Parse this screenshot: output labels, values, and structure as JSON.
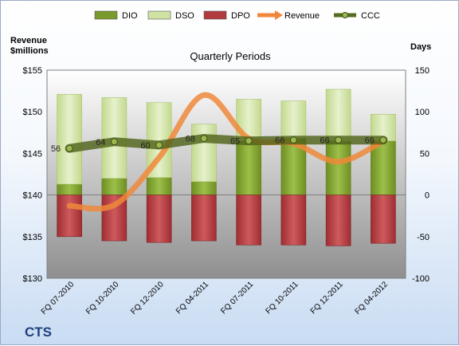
{
  "company": "CTS",
  "chart_data": {
    "type": "bar",
    "title": "Quarterly Periods",
    "categories": [
      "FQ 07-2010",
      "FQ 10-2010",
      "FQ 12-2010",
      "FQ 04-2011",
      "FQ 07-2011",
      "FQ 10-2011",
      "FQ 12-2011",
      "FQ 04-2012"
    ],
    "left_axis": {
      "label_line1": "Revenue",
      "label_line2": "$millions",
      "min": 130,
      "max": 155,
      "ticks": [
        "$130",
        "$135",
        "$140",
        "$145",
        "$150",
        "$155"
      ]
    },
    "right_axis": {
      "label": "Days",
      "min": -100,
      "max": 150,
      "ticks": [
        "-100",
        "-50",
        "0",
        "50",
        "100",
        "150"
      ]
    },
    "series": [
      {
        "name": "DIO",
        "type": "stacked-bar",
        "axis": "right",
        "values": [
          13,
          20,
          21,
          16,
          65,
          68,
          65,
          65
        ]
      },
      {
        "name": "DSO",
        "type": "stacked-bar",
        "axis": "right",
        "values": [
          108,
          97,
          90,
          69,
          50,
          45,
          62,
          32
        ]
      },
      {
        "name": "DPO",
        "type": "negative-bar",
        "axis": "right",
        "values": [
          -50,
          -55,
          -57,
          -55,
          -60,
          -60,
          -61,
          -58
        ]
      },
      {
        "name": "Revenue",
        "type": "line",
        "axis": "left",
        "values": [
          138.7,
          138.8,
          144.5,
          152,
          146.8,
          146.2,
          144,
          146.5
        ]
      },
      {
        "name": "CCC",
        "type": "line",
        "axis": "right",
        "values": [
          56,
          64,
          60,
          68,
          65,
          66,
          66,
          66
        ],
        "labels": [
          "56",
          "64",
          "60",
          "68",
          "65",
          "66",
          "66",
          "66"
        ]
      }
    ],
    "grid": false,
    "legend": "top",
    "colors": {
      "DIO": "#7a9a2e",
      "DSO": "#cfe2a3",
      "DPO": "#b23a3e",
      "Revenue": "#f0883a",
      "CCC": "#556b1f",
      "plot_bg": "#9a9a9a"
    }
  }
}
